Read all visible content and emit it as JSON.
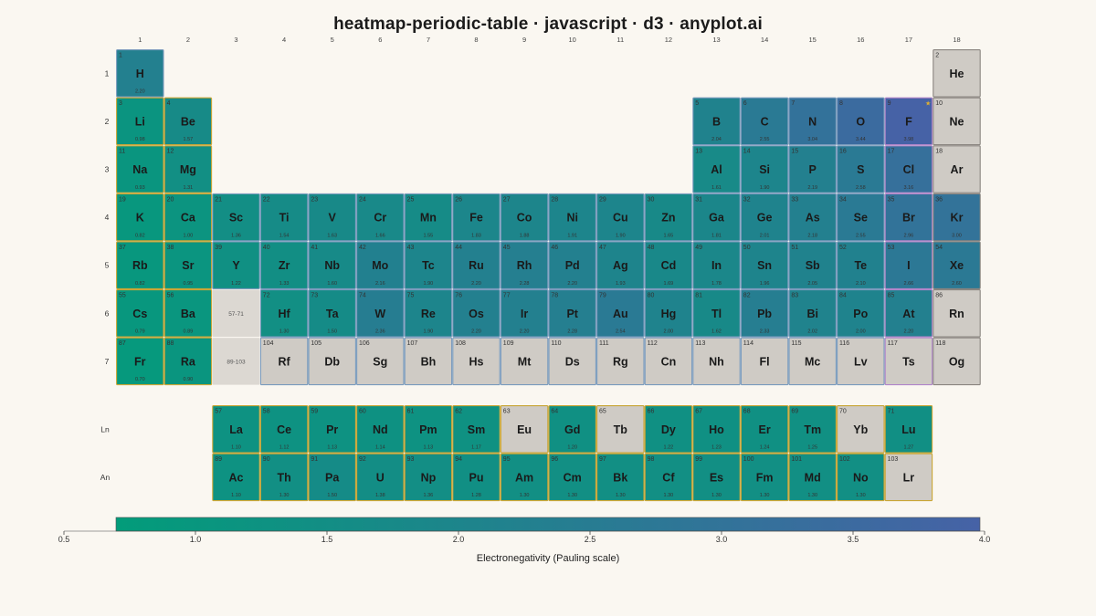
{
  "title": "heatmap-periodic-table · javascript · d3 · anyplot.ai",
  "colors": {
    "low": "#029c7a",
    "high": "#4662a6",
    "empty": "#cfcbc5",
    "placeholder": "#dcd8d2",
    "background": "#faf7f1",
    "border_metal": "#c9a636",
    "border_nonmetal": "#7a9bbd",
    "border_halogen": "#b085c9",
    "border_noble": "#8a8580",
    "border_lanthanide": "#c9a636",
    "border_default": "#7a9bbd",
    "star": "#e0b030"
  },
  "chart_data": {
    "type": "heatmap",
    "value_label": "Electronegativity (Pauling scale)",
    "vmin": 0.5,
    "vmax": 4.0,
    "colorbar_ticks": [
      "0.5",
      "1.0",
      "1.5",
      "2.0",
      "2.5",
      "3.0",
      "3.5",
      "4.0"
    ],
    "group_labels": [
      "1",
      "2",
      "3",
      "4",
      "5",
      "6",
      "7",
      "8",
      "9",
      "10",
      "11",
      "12",
      "13",
      "14",
      "15",
      "16",
      "17",
      "18"
    ],
    "period_labels": [
      "1",
      "2",
      "3",
      "4",
      "5",
      "6",
      "7"
    ],
    "series_labels": [
      "Ln",
      "An"
    ],
    "placeholders": [
      {
        "period": 6,
        "group": 3,
        "label": "57-71"
      },
      {
        "period": 7,
        "group": 3,
        "label": "89-103"
      }
    ],
    "highlight": {
      "symbol": "F",
      "marker": "★"
    },
    "elements": [
      {
        "n": 1,
        "s": "H",
        "p": 1,
        "g": 1,
        "v": "2.20",
        "c": "nonmetal"
      },
      {
        "n": 2,
        "s": "He",
        "p": 1,
        "g": 18,
        "v": null,
        "c": "noble"
      },
      {
        "n": 3,
        "s": "Li",
        "p": 2,
        "g": 1,
        "v": "0.98",
        "c": "metal"
      },
      {
        "n": 4,
        "s": "Be",
        "p": 2,
        "g": 2,
        "v": "1.57",
        "c": "metal"
      },
      {
        "n": 5,
        "s": "B",
        "p": 2,
        "g": 13,
        "v": "2.04",
        "c": "metalloid"
      },
      {
        "n": 6,
        "s": "C",
        "p": 2,
        "g": 14,
        "v": "2.55",
        "c": "nonmetal"
      },
      {
        "n": 7,
        "s": "N",
        "p": 2,
        "g": 15,
        "v": "3.04",
        "c": "nonmetal"
      },
      {
        "n": 8,
        "s": "O",
        "p": 2,
        "g": 16,
        "v": "3.44",
        "c": "nonmetal"
      },
      {
        "n": 9,
        "s": "F",
        "p": 2,
        "g": 17,
        "v": "3.98",
        "c": "halogen"
      },
      {
        "n": 10,
        "s": "Ne",
        "p": 2,
        "g": 18,
        "v": null,
        "c": "noble"
      },
      {
        "n": 11,
        "s": "Na",
        "p": 3,
        "g": 1,
        "v": "0.93",
        "c": "metal"
      },
      {
        "n": 12,
        "s": "Mg",
        "p": 3,
        "g": 2,
        "v": "1.31",
        "c": "metal"
      },
      {
        "n": 13,
        "s": "Al",
        "p": 3,
        "g": 13,
        "v": "1.61",
        "c": "post"
      },
      {
        "n": 14,
        "s": "Si",
        "p": 3,
        "g": 14,
        "v": "1.90",
        "c": "metalloid"
      },
      {
        "n": 15,
        "s": "P",
        "p": 3,
        "g": 15,
        "v": "2.19",
        "c": "nonmetal"
      },
      {
        "n": 16,
        "s": "S",
        "p": 3,
        "g": 16,
        "v": "2.58",
        "c": "nonmetal"
      },
      {
        "n": 17,
        "s": "Cl",
        "p": 3,
        "g": 17,
        "v": "3.16",
        "c": "halogen"
      },
      {
        "n": 18,
        "s": "Ar",
        "p": 3,
        "g": 18,
        "v": null,
        "c": "noble"
      },
      {
        "n": 19,
        "s": "K",
        "p": 4,
        "g": 1,
        "v": "0.82",
        "c": "metal"
      },
      {
        "n": 20,
        "s": "Ca",
        "p": 4,
        "g": 2,
        "v": "1.00",
        "c": "metal"
      },
      {
        "n": 21,
        "s": "Sc",
        "p": 4,
        "g": 3,
        "v": "1.36",
        "c": "transition"
      },
      {
        "n": 22,
        "s": "Ti",
        "p": 4,
        "g": 4,
        "v": "1.54",
        "c": "transition"
      },
      {
        "n": 23,
        "s": "V",
        "p": 4,
        "g": 5,
        "v": "1.63",
        "c": "transition"
      },
      {
        "n": 24,
        "s": "Cr",
        "p": 4,
        "g": 6,
        "v": "1.66",
        "c": "transition"
      },
      {
        "n": 25,
        "s": "Mn",
        "p": 4,
        "g": 7,
        "v": "1.55",
        "c": "transition"
      },
      {
        "n": 26,
        "s": "Fe",
        "p": 4,
        "g": 8,
        "v": "1.83",
        "c": "transition"
      },
      {
        "n": 27,
        "s": "Co",
        "p": 4,
        "g": 9,
        "v": "1.88",
        "c": "transition"
      },
      {
        "n": 28,
        "s": "Ni",
        "p": 4,
        "g": 10,
        "v": "1.91",
        "c": "transition"
      },
      {
        "n": 29,
        "s": "Cu",
        "p": 4,
        "g": 11,
        "v": "1.90",
        "c": "transition"
      },
      {
        "n": 30,
        "s": "Zn",
        "p": 4,
        "g": 12,
        "v": "1.65",
        "c": "transition"
      },
      {
        "n": 31,
        "s": "Ga",
        "p": 4,
        "g": 13,
        "v": "1.81",
        "c": "post"
      },
      {
        "n": 32,
        "s": "Ge",
        "p": 4,
        "g": 14,
        "v": "2.01",
        "c": "metalloid"
      },
      {
        "n": 33,
        "s": "As",
        "p": 4,
        "g": 15,
        "v": "2.18",
        "c": "metalloid"
      },
      {
        "n": 34,
        "s": "Se",
        "p": 4,
        "g": 16,
        "v": "2.55",
        "c": "nonmetal"
      },
      {
        "n": 35,
        "s": "Br",
        "p": 4,
        "g": 17,
        "v": "2.96",
        "c": "halogen"
      },
      {
        "n": 36,
        "s": "Kr",
        "p": 4,
        "g": 18,
        "v": "3.00",
        "c": "noble"
      },
      {
        "n": 37,
        "s": "Rb",
        "p": 5,
        "g": 1,
        "v": "0.82",
        "c": "metal"
      },
      {
        "n": 38,
        "s": "Sr",
        "p": 5,
        "g": 2,
        "v": "0.95",
        "c": "metal"
      },
      {
        "n": 39,
        "s": "Y",
        "p": 5,
        "g": 3,
        "v": "1.22",
        "c": "transition"
      },
      {
        "n": 40,
        "s": "Zr",
        "p": 5,
        "g": 4,
        "v": "1.33",
        "c": "transition"
      },
      {
        "n": 41,
        "s": "Nb",
        "p": 5,
        "g": 5,
        "v": "1.60",
        "c": "transition"
      },
      {
        "n": 42,
        "s": "Mo",
        "p": 5,
        "g": 6,
        "v": "2.16",
        "c": "transition"
      },
      {
        "n": 43,
        "s": "Tc",
        "p": 5,
        "g": 7,
        "v": "1.90",
        "c": "transition"
      },
      {
        "n": 44,
        "s": "Ru",
        "p": 5,
        "g": 8,
        "v": "2.20",
        "c": "transition"
      },
      {
        "n": 45,
        "s": "Rh",
        "p": 5,
        "g": 9,
        "v": "2.28",
        "c": "transition"
      },
      {
        "n": 46,
        "s": "Pd",
        "p": 5,
        "g": 10,
        "v": "2.20",
        "c": "transition"
      },
      {
        "n": 47,
        "s": "Ag",
        "p": 5,
        "g": 11,
        "v": "1.93",
        "c": "transition"
      },
      {
        "n": 48,
        "s": "Cd",
        "p": 5,
        "g": 12,
        "v": "1.69",
        "c": "transition"
      },
      {
        "n": 49,
        "s": "In",
        "p": 5,
        "g": 13,
        "v": "1.78",
        "c": "post"
      },
      {
        "n": 50,
        "s": "Sn",
        "p": 5,
        "g": 14,
        "v": "1.96",
        "c": "post"
      },
      {
        "n": 51,
        "s": "Sb",
        "p": 5,
        "g": 15,
        "v": "2.05",
        "c": "metalloid"
      },
      {
        "n": 52,
        "s": "Te",
        "p": 5,
        "g": 16,
        "v": "2.10",
        "c": "metalloid"
      },
      {
        "n": 53,
        "s": "I",
        "p": 5,
        "g": 17,
        "v": "2.66",
        "c": "halogen"
      },
      {
        "n": 54,
        "s": "Xe",
        "p": 5,
        "g": 18,
        "v": "2.60",
        "c": "noble"
      },
      {
        "n": 55,
        "s": "Cs",
        "p": 6,
        "g": 1,
        "v": "0.79",
        "c": "metal"
      },
      {
        "n": 56,
        "s": "Ba",
        "p": 6,
        "g": 2,
        "v": "0.89",
        "c": "metal"
      },
      {
        "n": 72,
        "s": "Hf",
        "p": 6,
        "g": 4,
        "v": "1.30",
        "c": "transition"
      },
      {
        "n": 73,
        "s": "Ta",
        "p": 6,
        "g": 5,
        "v": "1.50",
        "c": "transition"
      },
      {
        "n": 74,
        "s": "W",
        "p": 6,
        "g": 6,
        "v": "2.36",
        "c": "transition"
      },
      {
        "n": 75,
        "s": "Re",
        "p": 6,
        "g": 7,
        "v": "1.90",
        "c": "transition"
      },
      {
        "n": 76,
        "s": "Os",
        "p": 6,
        "g": 8,
        "v": "2.20",
        "c": "transition"
      },
      {
        "n": 77,
        "s": "Ir",
        "p": 6,
        "g": 9,
        "v": "2.20",
        "c": "transition"
      },
      {
        "n": 78,
        "s": "Pt",
        "p": 6,
        "g": 10,
        "v": "2.28",
        "c": "transition"
      },
      {
        "n": 79,
        "s": "Au",
        "p": 6,
        "g": 11,
        "v": "2.54",
        "c": "transition"
      },
      {
        "n": 80,
        "s": "Hg",
        "p": 6,
        "g": 12,
        "v": "2.00",
        "c": "transition"
      },
      {
        "n": 81,
        "s": "Tl",
        "p": 6,
        "g": 13,
        "v": "1.62",
        "c": "post"
      },
      {
        "n": 82,
        "s": "Pb",
        "p": 6,
        "g": 14,
        "v": "2.33",
        "c": "post"
      },
      {
        "n": 83,
        "s": "Bi",
        "p": 6,
        "g": 15,
        "v": "2.02",
        "c": "post"
      },
      {
        "n": 84,
        "s": "Po",
        "p": 6,
        "g": 16,
        "v": "2.00",
        "c": "metalloid"
      },
      {
        "n": 85,
        "s": "At",
        "p": 6,
        "g": 17,
        "v": "2.20",
        "c": "halogen"
      },
      {
        "n": 86,
        "s": "Rn",
        "p": 6,
        "g": 18,
        "v": null,
        "c": "noble"
      },
      {
        "n": 87,
        "s": "Fr",
        "p": 7,
        "g": 1,
        "v": "0.70",
        "c": "metal"
      },
      {
        "n": 88,
        "s": "Ra",
        "p": 7,
        "g": 2,
        "v": "0.90",
        "c": "metal"
      },
      {
        "n": 104,
        "s": "Rf",
        "p": 7,
        "g": 4,
        "v": null,
        "c": "transition"
      },
      {
        "n": 105,
        "s": "Db",
        "p": 7,
        "g": 5,
        "v": null,
        "c": "transition"
      },
      {
        "n": 106,
        "s": "Sg",
        "p": 7,
        "g": 6,
        "v": null,
        "c": "transition"
      },
      {
        "n": 107,
        "s": "Bh",
        "p": 7,
        "g": 7,
        "v": null,
        "c": "transition"
      },
      {
        "n": 108,
        "s": "Hs",
        "p": 7,
        "g": 8,
        "v": null,
        "c": "transition"
      },
      {
        "n": 109,
        "s": "Mt",
        "p": 7,
        "g": 9,
        "v": null,
        "c": "transition"
      },
      {
        "n": 110,
        "s": "Ds",
        "p": 7,
        "g": 10,
        "v": null,
        "c": "transition"
      },
      {
        "n": 111,
        "s": "Rg",
        "p": 7,
        "g": 11,
        "v": null,
        "c": "transition"
      },
      {
        "n": 112,
        "s": "Cn",
        "p": 7,
        "g": 12,
        "v": null,
        "c": "transition"
      },
      {
        "n": 113,
        "s": "Nh",
        "p": 7,
        "g": 13,
        "v": null,
        "c": "post"
      },
      {
        "n": 114,
        "s": "Fl",
        "p": 7,
        "g": 14,
        "v": null,
        "c": "post"
      },
      {
        "n": 115,
        "s": "Mc",
        "p": 7,
        "g": 15,
        "v": null,
        "c": "post"
      },
      {
        "n": 116,
        "s": "Lv",
        "p": 7,
        "g": 16,
        "v": null,
        "c": "post"
      },
      {
        "n": 117,
        "s": "Ts",
        "p": 7,
        "g": 17,
        "v": null,
        "c": "halogen"
      },
      {
        "n": 118,
        "s": "Og",
        "p": 7,
        "g": 18,
        "v": null,
        "c": "noble"
      },
      {
        "n": 57,
        "s": "La",
        "p": 9,
        "g": 3,
        "v": "1.10",
        "c": "lanthanide"
      },
      {
        "n": 58,
        "s": "Ce",
        "p": 9,
        "g": 4,
        "v": "1.12",
        "c": "lanthanide"
      },
      {
        "n": 59,
        "s": "Pr",
        "p": 9,
        "g": 5,
        "v": "1.13",
        "c": "lanthanide"
      },
      {
        "n": 60,
        "s": "Nd",
        "p": 9,
        "g": 6,
        "v": "1.14",
        "c": "lanthanide"
      },
      {
        "n": 61,
        "s": "Pm",
        "p": 9,
        "g": 7,
        "v": "1.13",
        "c": "lanthanide"
      },
      {
        "n": 62,
        "s": "Sm",
        "p": 9,
        "g": 8,
        "v": "1.17",
        "c": "lanthanide"
      },
      {
        "n": 63,
        "s": "Eu",
        "p": 9,
        "g": 9,
        "v": null,
        "c": "lanthanide"
      },
      {
        "n": 64,
        "s": "Gd",
        "p": 9,
        "g": 10,
        "v": "1.20",
        "c": "lanthanide"
      },
      {
        "n": 65,
        "s": "Tb",
        "p": 9,
        "g": 11,
        "v": null,
        "c": "lanthanide"
      },
      {
        "n": 66,
        "s": "Dy",
        "p": 9,
        "g": 12,
        "v": "1.22",
        "c": "lanthanide"
      },
      {
        "n": 67,
        "s": "Ho",
        "p": 9,
        "g": 13,
        "v": "1.23",
        "c": "lanthanide"
      },
      {
        "n": 68,
        "s": "Er",
        "p": 9,
        "g": 14,
        "v": "1.24",
        "c": "lanthanide"
      },
      {
        "n": 69,
        "s": "Tm",
        "p": 9,
        "g": 15,
        "v": "1.25",
        "c": "lanthanide"
      },
      {
        "n": 70,
        "s": "Yb",
        "p": 9,
        "g": 16,
        "v": null,
        "c": "lanthanide"
      },
      {
        "n": 71,
        "s": "Lu",
        "p": 9,
        "g": 17,
        "v": "1.27",
        "c": "lanthanide"
      },
      {
        "n": 89,
        "s": "Ac",
        "p": 10,
        "g": 3,
        "v": "1.10",
        "c": "actinide"
      },
      {
        "n": 90,
        "s": "Th",
        "p": 10,
        "g": 4,
        "v": "1.30",
        "c": "actinide"
      },
      {
        "n": 91,
        "s": "Pa",
        "p": 10,
        "g": 5,
        "v": "1.50",
        "c": "actinide"
      },
      {
        "n": 92,
        "s": "U",
        "p": 10,
        "g": 6,
        "v": "1.38",
        "c": "actinide"
      },
      {
        "n": 93,
        "s": "Np",
        "p": 10,
        "g": 7,
        "v": "1.36",
        "c": "actinide"
      },
      {
        "n": 94,
        "s": "Pu",
        "p": 10,
        "g": 8,
        "v": "1.28",
        "c": "actinide"
      },
      {
        "n": 95,
        "s": "Am",
        "p": 10,
        "g": 9,
        "v": "1.30",
        "c": "actinide"
      },
      {
        "n": 96,
        "s": "Cm",
        "p": 10,
        "g": 10,
        "v": "1.30",
        "c": "actinide"
      },
      {
        "n": 97,
        "s": "Bk",
        "p": 10,
        "g": 11,
        "v": "1.30",
        "c": "actinide"
      },
      {
        "n": 98,
        "s": "Cf",
        "p": 10,
        "g": 12,
        "v": "1.30",
        "c": "actinide"
      },
      {
        "n": 99,
        "s": "Es",
        "p": 10,
        "g": 13,
        "v": "1.30",
        "c": "actinide"
      },
      {
        "n": 100,
        "s": "Fm",
        "p": 10,
        "g": 14,
        "v": "1.30",
        "c": "actinide"
      },
      {
        "n": 101,
        "s": "Md",
        "p": 10,
        "g": 15,
        "v": "1.30",
        "c": "actinide"
      },
      {
        "n": 102,
        "s": "No",
        "p": 10,
        "g": 16,
        "v": "1.30",
        "c": "actinide"
      },
      {
        "n": 103,
        "s": "Lr",
        "p": 10,
        "g": 17,
        "v": null,
        "c": "actinide"
      }
    ]
  }
}
